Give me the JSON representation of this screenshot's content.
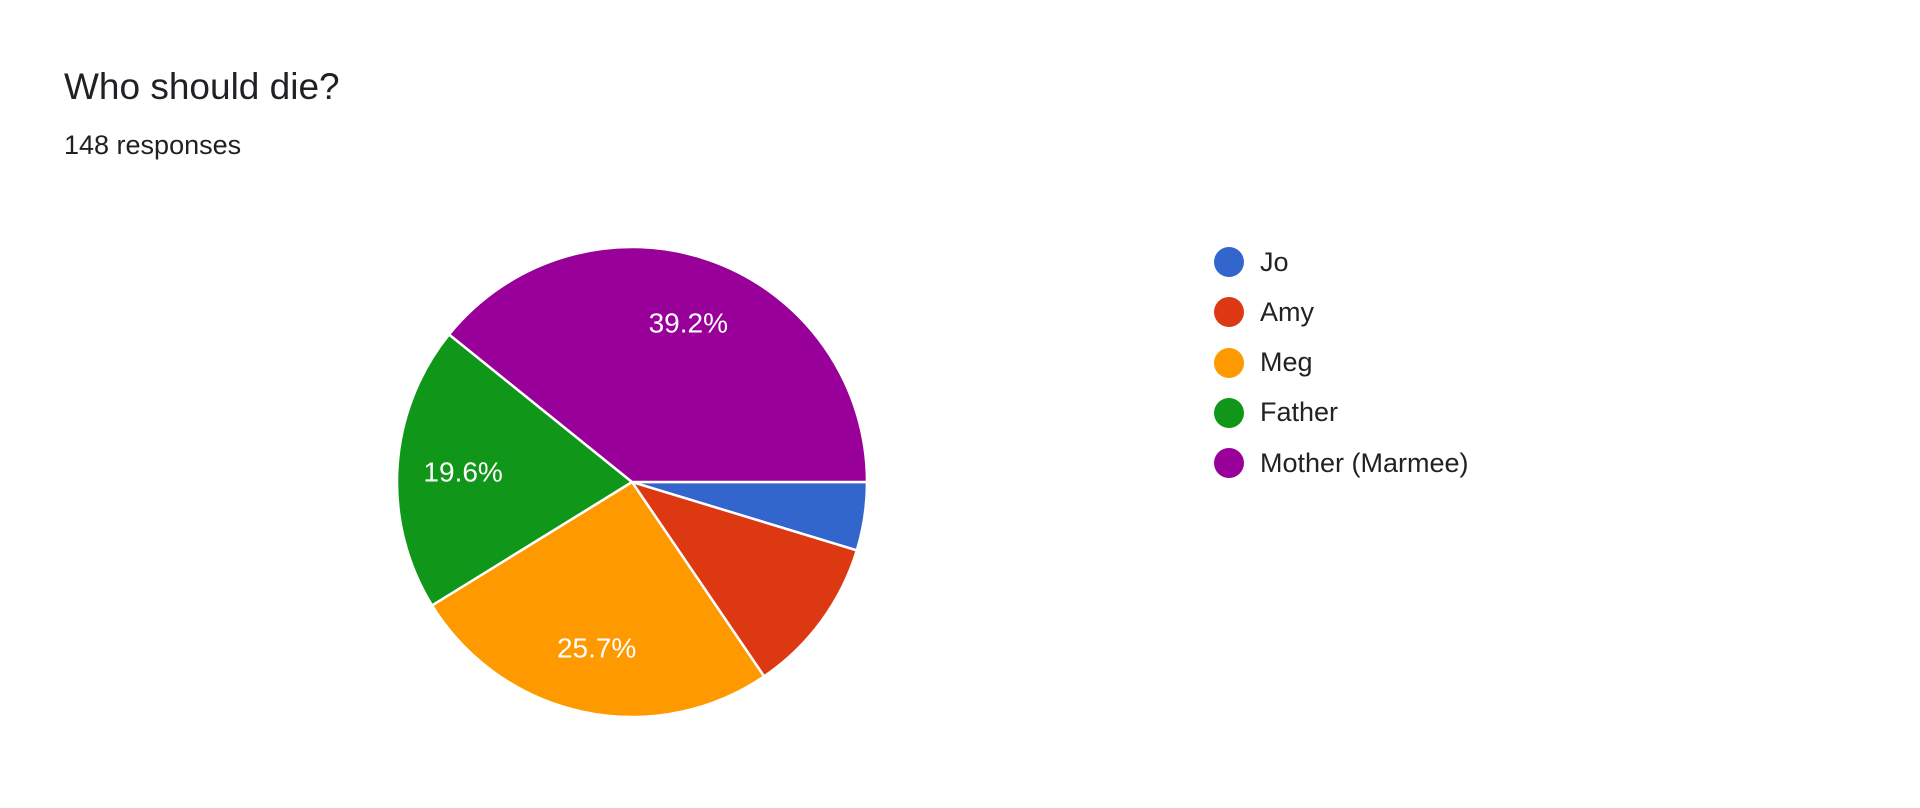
{
  "chart_data": {
    "type": "pie",
    "title": "Who should die?",
    "subtitle": "148 responses",
    "legend_position": "right",
    "slices": [
      {
        "label": "Jo",
        "value": 4.7,
        "color": "#3366cc",
        "data_label": ""
      },
      {
        "label": "Amy",
        "value": 10.8,
        "color": "#dc3912",
        "data_label": ""
      },
      {
        "label": "Meg",
        "value": 25.7,
        "color": "#ff9900",
        "data_label": "25.7%"
      },
      {
        "label": "Father",
        "value": 19.6,
        "color": "#109618",
        "data_label": "19.6%"
      },
      {
        "label": "Mother (Marmee)",
        "value": 39.2,
        "color": "#990099",
        "data_label": "39.2%"
      }
    ]
  }
}
